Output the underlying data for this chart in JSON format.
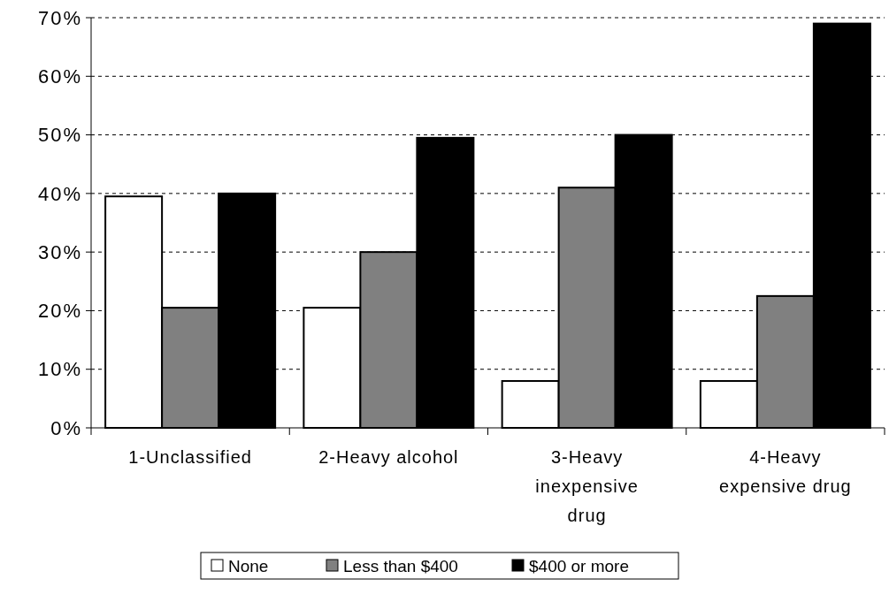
{
  "chart_data": {
    "type": "bar",
    "categories": [
      "1-Unclassified",
      "2-Heavy alcohol",
      "3-Heavy inexpensive drug",
      "4-Heavy expensive drug"
    ],
    "series": [
      {
        "name": "None",
        "color": "#ffffff",
        "values": [
          39.5,
          20.5,
          8,
          8
        ]
      },
      {
        "name": "Less than $400",
        "color": "#808080",
        "values": [
          20.5,
          30,
          41,
          22.5
        ]
      },
      {
        "name": "$400 or more",
        "color": "#000000",
        "values": [
          40,
          49.5,
          50,
          69
        ]
      }
    ],
    "ylim": [
      0,
      70
    ],
    "yticks": [
      {
        "value": 0,
        "label": "0%"
      },
      {
        "value": 10,
        "label": "10%"
      },
      {
        "value": 20,
        "label": "20%"
      },
      {
        "value": 30,
        "label": "30%"
      },
      {
        "value": 40,
        "label": "40%"
      },
      {
        "value": 50,
        "label": "50%"
      },
      {
        "value": 60,
        "label": "60%"
      },
      {
        "value": 70,
        "label": "70%"
      }
    ],
    "grid": "y",
    "legend": "bottom"
  }
}
